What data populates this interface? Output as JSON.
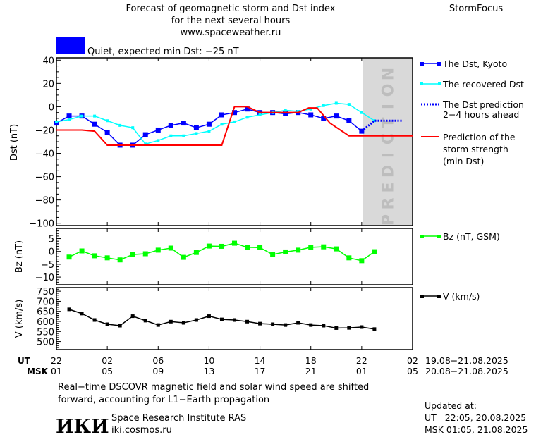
{
  "header": {
    "title_lines": [
      "Forecast of geomagnetic storm and Dst index",
      "for the next several hours",
      "www.spaceweather.ru"
    ],
    "brand": "StormFocus",
    "status": {
      "text": "Quiet, expected min Dst: −25 nT",
      "color": "#0000ff"
    }
  },
  "colors": {
    "dst_kyoto": "#0000ff",
    "dst_recovered": "#00ffff",
    "dst_prediction": "#0000ff",
    "storm_strength": "#ff0000",
    "bz": "#00ff00",
    "v": "#000000",
    "prediction_zone": "#d9d9d9"
  },
  "prediction_label": "PREDICTION",
  "legend": {
    "dst_kyoto": "The Dst, Kyoto",
    "dst_recovered": "The recovered Dst",
    "dst_prediction": [
      "The Dst prediction",
      "2−4 hours ahead"
    ],
    "storm_strength": [
      "Prediction of the",
      "storm strength",
      "(min Dst)"
    ],
    "bz": "Bz (nT, GSM)",
    "v": "V (km/s)"
  },
  "xaxis": {
    "ut_label": "UT",
    "msk_label": "MSK",
    "ut_ticks": [
      "22",
      "02",
      "06",
      "10",
      "14",
      "18",
      "22",
      "02"
    ],
    "msk_ticks": [
      "01",
      "05",
      "09",
      "13",
      "17",
      "21",
      "01",
      "05"
    ],
    "ut_range": "19.08−21.08.2025",
    "msk_range": "20.08−21.08.2025"
  },
  "chart_data": [
    {
      "type": "line",
      "panel": "dst",
      "ylabel": "Dst (nT)",
      "ylim": [
        -102,
        42
      ],
      "yticks": [
        40,
        20,
        0,
        -20,
        -40,
        -60,
        -80,
        -100
      ],
      "xlim": [
        "19.08 22:00",
        "21.08 02:00"
      ],
      "grid": false,
      "legend": "right",
      "series": [
        {
          "key": "dst_kyoto",
          "name": "The Dst, Kyoto",
          "marker": "square",
          "x": [
            "19.08 22:00",
            "19.08 23:00",
            "20.08 00:00",
            "20.08 01:00",
            "20.08 02:00",
            "20.08 03:00",
            "20.08 04:00",
            "20.08 05:00",
            "20.08 06:00",
            "20.08 07:00",
            "20.08 08:00",
            "20.08 09:00",
            "20.08 10:00",
            "20.08 11:00",
            "20.08 12:00",
            "20.08 13:00",
            "20.08 14:00",
            "20.08 15:00",
            "20.08 16:00",
            "20.08 17:00",
            "20.08 18:00",
            "20.08 19:00",
            "20.08 20:00",
            "20.08 21:00",
            "20.08 22:00"
          ],
          "y": [
            -14,
            -8,
            -8,
            -15,
            -22,
            -33,
            -33,
            -24,
            -20,
            -16,
            -14,
            -18,
            -15,
            -7,
            -5,
            -2,
            -5,
            -5,
            -6,
            -5,
            -7,
            -10,
            -8,
            -12,
            -21
          ]
        },
        {
          "key": "dst_recovered",
          "name": "The recovered Dst",
          "marker": "square-small",
          "x": [
            "19.08 22:00",
            "19.08 23:00",
            "20.08 00:00",
            "20.08 01:00",
            "20.08 02:00",
            "20.08 03:00",
            "20.08 04:00",
            "20.08 05:00",
            "20.08 06:00",
            "20.08 07:00",
            "20.08 08:00",
            "20.08 09:00",
            "20.08 10:00",
            "20.08 11:00",
            "20.08 12:00",
            "20.08 13:00",
            "20.08 14:00",
            "20.08 15:00",
            "20.08 16:00",
            "20.08 17:00",
            "20.08 18:00",
            "20.08 19:00",
            "20.08 20:00",
            "20.08 21:00",
            "20.08 22:00",
            "20.08 23:00"
          ],
          "y": [
            -13,
            -11,
            -8,
            -8,
            -12,
            -16,
            -18,
            -32,
            -29,
            -25,
            -25,
            -23,
            -21,
            -15,
            -13,
            -9,
            -7,
            -5,
            -3,
            -4,
            -2,
            1,
            3,
            2,
            -5,
            -12
          ]
        },
        {
          "key": "dst_prediction",
          "name": "The Dst prediction 2−4 hours ahead",
          "style": "dotted",
          "x": [
            "20.08 22:00",
            "20.08 23:00",
            "21.08 01:10"
          ],
          "y": [
            -21,
            -12,
            -12
          ]
        },
        {
          "key": "storm_strength",
          "name": "Prediction of the storm strength (min Dst)",
          "x": [
            "19.08 22:00",
            "20.08 00:00",
            "20.08 01:00",
            "20.08 02:00",
            "20.08 11:00",
            "20.08 12:00",
            "20.08 13:00",
            "20.08 14:00",
            "20.08 17:00",
            "20.08 17:50",
            "20.08 18:30",
            "20.08 19:30",
            "20.08 21:00",
            "21.08 02:00"
          ],
          "y": [
            -20,
            -20,
            -21,
            -33,
            -33,
            0,
            0,
            -5,
            -5,
            -1,
            -1,
            -14,
            -25,
            -25
          ]
        }
      ],
      "shaded_region": {
        "label": "PREDICTION",
        "x": [
          "20.08 22:05",
          "21.08 02:00"
        ]
      }
    },
    {
      "type": "line",
      "panel": "bz",
      "ylabel": "Bz (nT)",
      "ylim": [
        -13,
        9
      ],
      "yticks": [
        5,
        0,
        -5,
        -10
      ],
      "series": [
        {
          "key": "bz",
          "name": "Bz (nT, GSM)",
          "marker": "square",
          "x": [
            "19.08 23:00",
            "20.08 00:00",
            "20.08 01:00",
            "20.08 02:00",
            "20.08 03:00",
            "20.08 04:00",
            "20.08 05:00",
            "20.08 06:00",
            "20.08 07:00",
            "20.08 08:00",
            "20.08 09:00",
            "20.08 10:00",
            "20.08 11:00",
            "20.08 12:00",
            "20.08 13:00",
            "20.08 14:00",
            "20.08 15:00",
            "20.08 16:00",
            "20.08 17:00",
            "20.08 18:00",
            "20.08 19:00",
            "20.08 20:00",
            "20.08 21:00",
            "20.08 22:00",
            "20.08 23:00"
          ],
          "y": [
            -2.2,
            0.2,
            -1.7,
            -2.5,
            -3.3,
            -1.2,
            -0.9,
            0.5,
            1.3,
            -2.3,
            -0.4,
            2.1,
            2.0,
            3.2,
            1.6,
            1.5,
            -1.2,
            -0.2,
            0.5,
            1.6,
            1.8,
            1.0,
            -2.5,
            -3.6,
            -0.1
          ]
        }
      ]
    },
    {
      "type": "line",
      "panel": "v",
      "ylabel": "V (km/s)",
      "ylim": [
        460,
        768
      ],
      "yticks": [
        750,
        700,
        650,
        600,
        550,
        500
      ],
      "series": [
        {
          "key": "v",
          "name": "V (km/s)",
          "marker": "square",
          "x": [
            "19.08 23:00",
            "20.08 00:00",
            "20.08 01:00",
            "20.08 02:00",
            "20.08 03:00",
            "20.08 04:00",
            "20.08 05:00",
            "20.08 06:00",
            "20.08 07:00",
            "20.08 08:00",
            "20.08 09:00",
            "20.08 10:00",
            "20.08 11:00",
            "20.08 12:00",
            "20.08 13:00",
            "20.08 14:00",
            "20.08 15:00",
            "20.08 16:00",
            "20.08 17:00",
            "20.08 18:00",
            "20.08 19:00",
            "20.08 20:00",
            "20.08 21:00",
            "20.08 22:00",
            "20.08 23:00"
          ],
          "y": [
            660,
            639,
            607,
            586,
            579,
            626,
            604,
            582,
            599,
            593,
            607,
            626,
            610,
            607,
            599,
            589,
            586,
            582,
            593,
            582,
            579,
            567,
            568,
            572,
            562
          ]
        }
      ]
    }
  ],
  "footer": {
    "note_lines": [
      "Real−time DSCOVR magnetic field and solar wind speed are shifted",
      "forward, accounting for L1−Earth propagation"
    ],
    "logo": "ИКИ",
    "institute": "Space Research Institute RAS",
    "site": "iki.cosmos.ru",
    "updated_label": "Updated at:",
    "updated_ut": "UT   22:05, 20.08.2025",
    "updated_msk": "MSK 01:05, 21.08.2025"
  }
}
